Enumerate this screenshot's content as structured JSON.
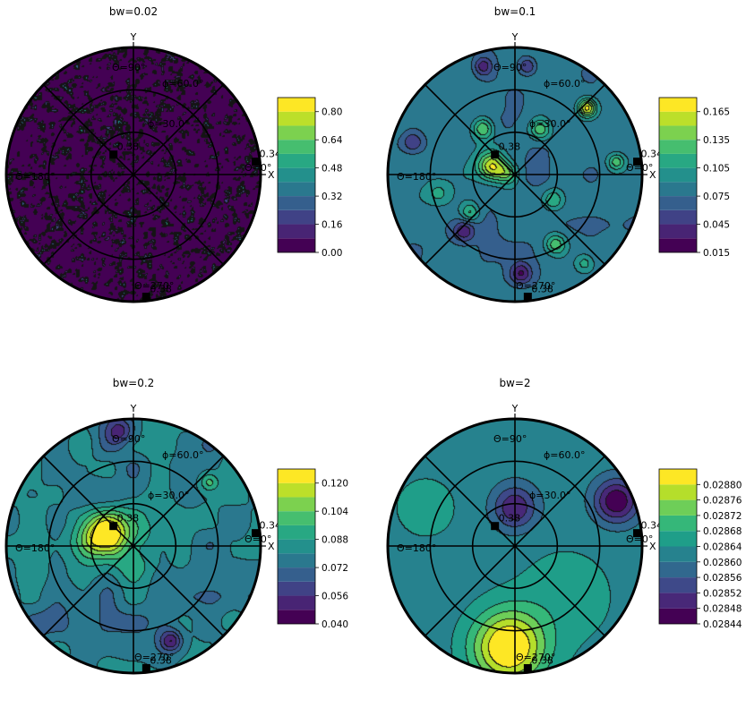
{
  "chart_data": [
    {
      "type": "heatmap",
      "title": "bw=0.02",
      "axis_labels": {
        "x": "X",
        "y": "Y"
      },
      "angle_labels": [
        "Θ=90°",
        "Θ=180°",
        "Θ=0°",
        "Θ=270°"
      ],
      "ring_labels": [
        "ϕ=60.0°",
        "ϕ=30.0°"
      ],
      "markers": [
        {
          "label": "0.38",
          "theta_deg": 135,
          "phi_deg": 20
        },
        {
          "label": "0.34",
          "theta_deg": 6,
          "phi_deg": 87
        },
        {
          "label": "0.38",
          "theta_deg": 276,
          "phi_deg": 87
        }
      ],
      "colorbar": {
        "ticks": [
          "0.00",
          "0.16",
          "0.32",
          "0.48",
          "0.64",
          "0.80"
        ],
        "levels": [
          0.0,
          0.08,
          0.16,
          0.24,
          0.32,
          0.4,
          0.48,
          0.56,
          0.64,
          0.72,
          0.8,
          0.88
        ],
        "range": [
          0.0,
          0.88
        ]
      },
      "field": {
        "kind": "noise",
        "base": 0.04,
        "blobs": []
      }
    },
    {
      "type": "heatmap",
      "title": "bw=0.1",
      "axis_labels": {
        "x": "X",
        "y": "Y"
      },
      "angle_labels": [
        "Θ=90°",
        "Θ=180°",
        "Θ=0°",
        "Θ=270°"
      ],
      "ring_labels": [
        "ϕ=60.0°",
        "ϕ=30.0°"
      ],
      "markers": [
        {
          "label": "0.38",
          "theta_deg": 135,
          "phi_deg": 20
        },
        {
          "label": "0.34",
          "theta_deg": 6,
          "phi_deg": 87
        },
        {
          "label": "0.38",
          "theta_deg": 276,
          "phi_deg": 87
        }
      ],
      "colorbar": {
        "ticks": [
          "0.015",
          "0.045",
          "0.075",
          "0.105",
          "0.135",
          "0.165"
        ],
        "levels": [
          0.015,
          0.03,
          0.045,
          0.06,
          0.075,
          0.09,
          0.105,
          0.12,
          0.135,
          0.15,
          0.165,
          0.18
        ],
        "range": [
          0.015,
          0.18
        ]
      },
      "field": {
        "kind": "blobs",
        "base": 0.08,
        "blobs": [
          {
            "x": -0.18,
            "y": 0.06,
            "s": 0.08,
            "a": 0.09
          },
          {
            "x": -0.05,
            "y": 0.0,
            "s": 0.06,
            "a": 0.05
          },
          {
            "x": 0.57,
            "y": 0.52,
            "s": 0.05,
            "a": 0.09
          },
          {
            "x": -0.25,
            "y": 0.36,
            "s": 0.06,
            "a": 0.06
          },
          {
            "x": 0.2,
            "y": 0.35,
            "s": 0.06,
            "a": 0.05
          },
          {
            "x": 0.3,
            "y": -0.2,
            "s": 0.06,
            "a": 0.04
          },
          {
            "x": 0.32,
            "y": -0.55,
            "s": 0.06,
            "a": 0.05
          },
          {
            "x": -0.6,
            "y": -0.15,
            "s": 0.07,
            "a": 0.03
          },
          {
            "x": 0.8,
            "y": 0.1,
            "s": 0.05,
            "a": 0.05
          },
          {
            "x": -0.4,
            "y": -0.45,
            "s": 0.06,
            "a": -0.05
          },
          {
            "x": 0.05,
            "y": -0.78,
            "s": 0.06,
            "a": -0.05
          },
          {
            "x": -0.8,
            "y": 0.25,
            "s": 0.06,
            "a": -0.04
          },
          {
            "x": 0.1,
            "y": 0.85,
            "s": 0.05,
            "a": -0.04
          },
          {
            "x": -0.25,
            "y": 0.85,
            "s": 0.05,
            "a": -0.04
          },
          {
            "x": -0.35,
            "y": -0.3,
            "s": 0.05,
            "a": 0.04
          },
          {
            "x": 0.55,
            "y": -0.7,
            "s": 0.05,
            "a": 0.03
          }
        ]
      }
    },
    {
      "type": "heatmap",
      "title": "bw=0.2",
      "axis_labels": {
        "x": "X",
        "y": "Y"
      },
      "angle_labels": [
        "Θ=90°",
        "Θ=180°",
        "Θ=0°",
        "Θ=270°"
      ],
      "ring_labels": [
        "ϕ=60.0°",
        "ϕ=30.0°"
      ],
      "markers": [
        {
          "label": "0.38",
          "theta_deg": 135,
          "phi_deg": 20
        },
        {
          "label": "0.34",
          "theta_deg": 6,
          "phi_deg": 87
        },
        {
          "label": "0.38",
          "theta_deg": 276,
          "phi_deg": 87
        }
      ],
      "colorbar": {
        "ticks": [
          "0.040",
          "0.056",
          "0.072",
          "0.088",
          "0.104",
          "0.120"
        ],
        "levels": [
          0.04,
          0.048,
          0.056,
          0.064,
          0.072,
          0.08,
          0.088,
          0.096,
          0.104,
          0.112,
          0.12,
          0.128
        ],
        "range": [
          0.04,
          0.128
        ]
      },
      "field": {
        "kind": "blobs",
        "base": 0.078,
        "blobs": [
          {
            "x": -0.22,
            "y": 0.07,
            "s": 0.12,
            "a": 0.055
          },
          {
            "x": 0.05,
            "y": 0.1,
            "s": 0.2,
            "a": 0.018
          },
          {
            "x": 0.6,
            "y": 0.5,
            "s": 0.05,
            "a": 0.02
          },
          {
            "x": 0.3,
            "y": -0.75,
            "s": 0.06,
            "a": -0.03
          },
          {
            "x": -0.1,
            "y": 0.9,
            "s": 0.08,
            "a": -0.025
          },
          {
            "x": -0.6,
            "y": -0.6,
            "s": 0.1,
            "a": -0.01
          }
        ]
      }
    },
    {
      "type": "heatmap",
      "title": "bw=2",
      "axis_labels": {
        "x": "X",
        "y": "Y"
      },
      "angle_labels": [
        "Θ=90°",
        "Θ=180°",
        "Θ=0°",
        "Θ=270°"
      ],
      "ring_labels": [
        "ϕ=60.0°",
        "ϕ=30.0°"
      ],
      "markers": [
        {
          "label": "0.38",
          "theta_deg": 135,
          "phi_deg": 20
        },
        {
          "label": "0.34",
          "theta_deg": 6,
          "phi_deg": 87
        },
        {
          "label": "0.38",
          "theta_deg": 276,
          "phi_deg": 87
        }
      ],
      "colorbar": {
        "ticks": [
          "0.02844",
          "0.02848",
          "0.02852",
          "0.02856",
          "0.02860",
          "0.02864",
          "0.02868",
          "0.02872",
          "0.02876",
          "0.02880"
        ],
        "levels": [
          0.02844,
          0.02848,
          0.02852,
          0.02856,
          0.0286,
          0.02864,
          0.02868,
          0.02872,
          0.02876,
          0.0288,
          0.02884
        ],
        "range": [
          0.02844,
          0.02884
        ]
      },
      "field": {
        "kind": "gradient",
        "base": 0.02862,
        "blobs": [
          {
            "x": -0.05,
            "y": -0.8,
            "s": 0.2,
            "a": 0.00024
          },
          {
            "x": 0.0,
            "y": 0.3,
            "s": 0.12,
            "a": -0.00014
          },
          {
            "x": 0.8,
            "y": 0.35,
            "s": 0.12,
            "a": -0.00018
          },
          {
            "x": -0.7,
            "y": 0.3,
            "s": 0.25,
            "a": 3e-05
          },
          {
            "x": 0.4,
            "y": -0.4,
            "s": 0.3,
            "a": 4e-05
          }
        ]
      }
    }
  ]
}
